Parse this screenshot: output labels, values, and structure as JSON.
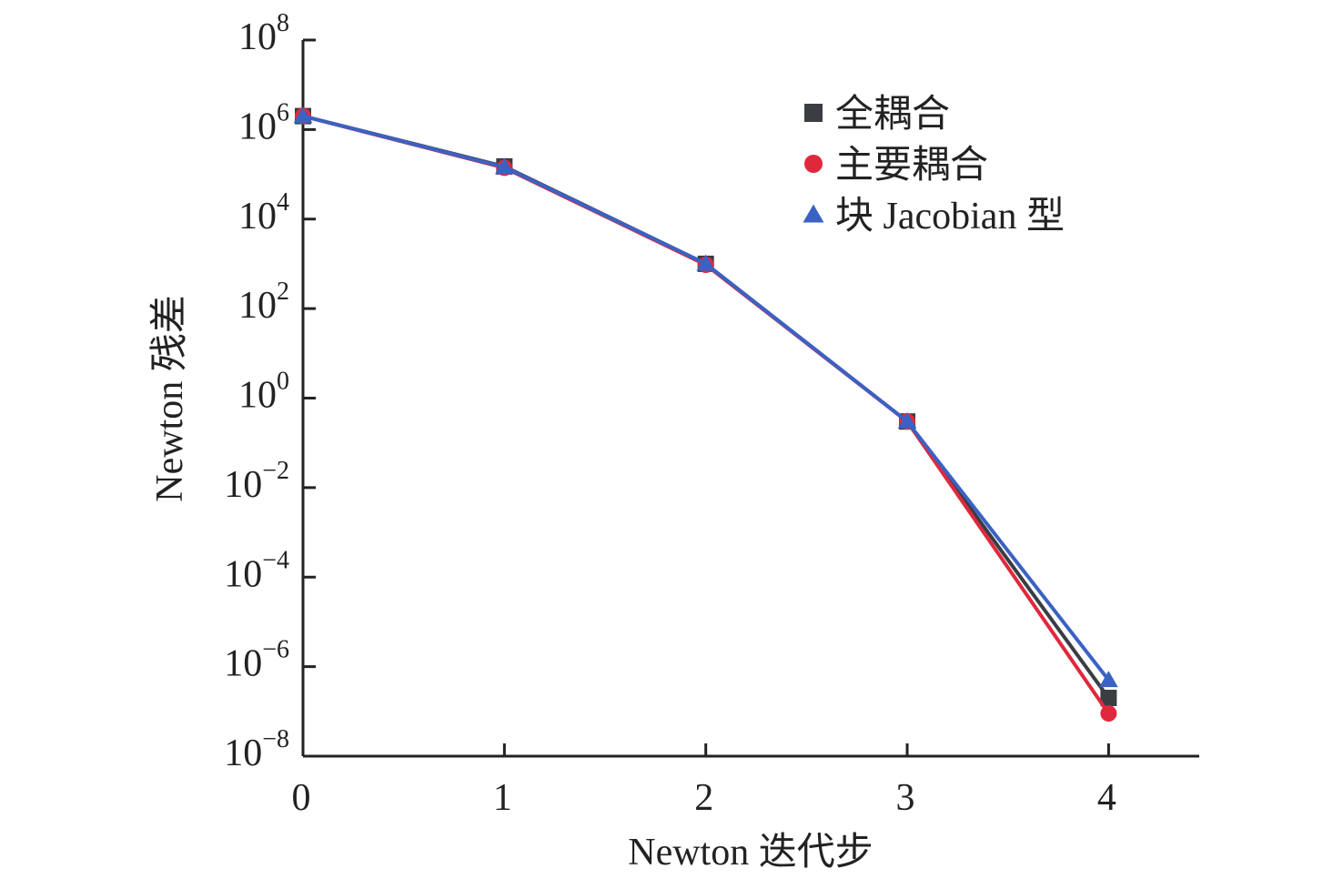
{
  "chart_data": {
    "type": "line",
    "title": "",
    "xlabel": "Newton 迭代步",
    "ylabel": "Newton 残差",
    "yscale": "log",
    "x": [
      0,
      1,
      2,
      3,
      4
    ],
    "xlim": [
      0,
      4.45
    ],
    "ylim_exponent": [
      -8,
      8
    ],
    "x_ticks": [
      "0",
      "1",
      "2",
      "3",
      "4"
    ],
    "y_ticks": [
      {
        "base": "10",
        "exp": "8"
      },
      {
        "base": "10",
        "exp": "6"
      },
      {
        "base": "10",
        "exp": "4"
      },
      {
        "base": "10",
        "exp": "2"
      },
      {
        "base": "10",
        "exp": "0"
      },
      {
        "base": "10",
        "exp": "−2"
      },
      {
        "base": "10",
        "exp": "−4"
      },
      {
        "base": "10",
        "exp": "−6"
      },
      {
        "base": "10",
        "exp": "−8"
      }
    ],
    "y_tick_exponents": [
      8,
      6,
      4,
      2,
      0,
      -2,
      -4,
      -6,
      -8
    ],
    "legend_position": "top-right",
    "series": [
      {
        "name": "全耦合",
        "marker": "square",
        "color": "#3a3d42",
        "values": [
          2000000,
          150000,
          1000,
          0.3,
          2e-07
        ]
      },
      {
        "name": "主要耦合",
        "marker": "circle",
        "color": "#e0283c",
        "values": [
          2000000,
          140000,
          950,
          0.3,
          9e-08
        ]
      },
      {
        "name": "块 Jacobian 型",
        "marker": "triangle",
        "color": "#3a62c4",
        "values": [
          2000000,
          145000,
          1000,
          0.3,
          5e-07
        ]
      }
    ]
  }
}
